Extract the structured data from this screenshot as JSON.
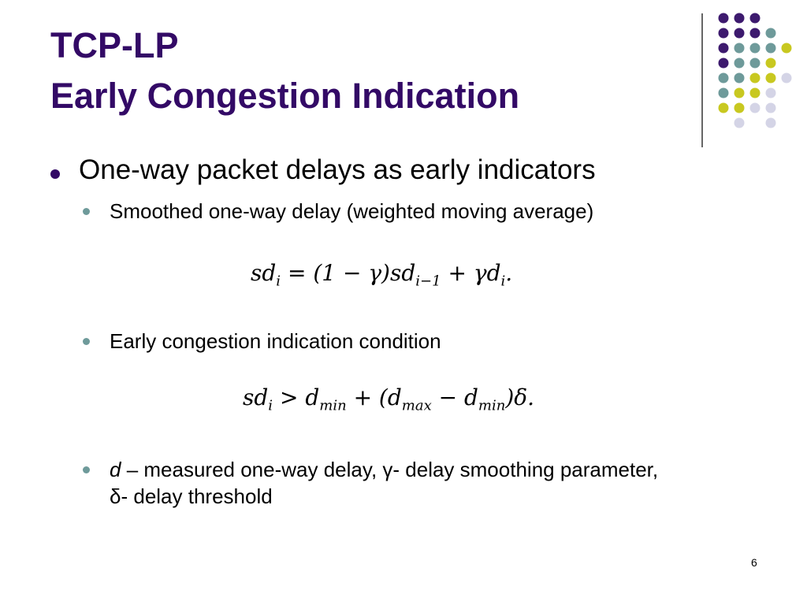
{
  "title": [
    "TCP-LP",
    "Early Congestion Indication"
  ],
  "bullets": [
    {
      "text": "One-way packet delays as early indicators",
      "items": [
        {
          "text": "Smoothed one-way delay (weighted moving average)",
          "equation": [
            {
              "t": "sd"
            },
            {
              "sub": "i"
            },
            {
              "t": " = (1 − γ)sd"
            },
            {
              "sub": "i−1"
            },
            {
              "t": " + γd"
            },
            {
              "sub": "i"
            },
            {
              "t": "."
            }
          ]
        },
        {
          "text": "Early congestion indication condition",
          "equation": [
            {
              "t": "sd"
            },
            {
              "sub": "i"
            },
            {
              "t": " > d"
            },
            {
              "sub": "min"
            },
            {
              "t": " + (d"
            },
            {
              "sub": "max"
            },
            {
              "t": " − d"
            },
            {
              "sub": "min"
            },
            {
              "t": ")δ."
            }
          ]
        },
        {
          "term": "d",
          "text": " – measured one-way delay, γ- delay smoothing parameter, δ- delay threshold"
        }
      ]
    }
  ],
  "page_number": "6"
}
